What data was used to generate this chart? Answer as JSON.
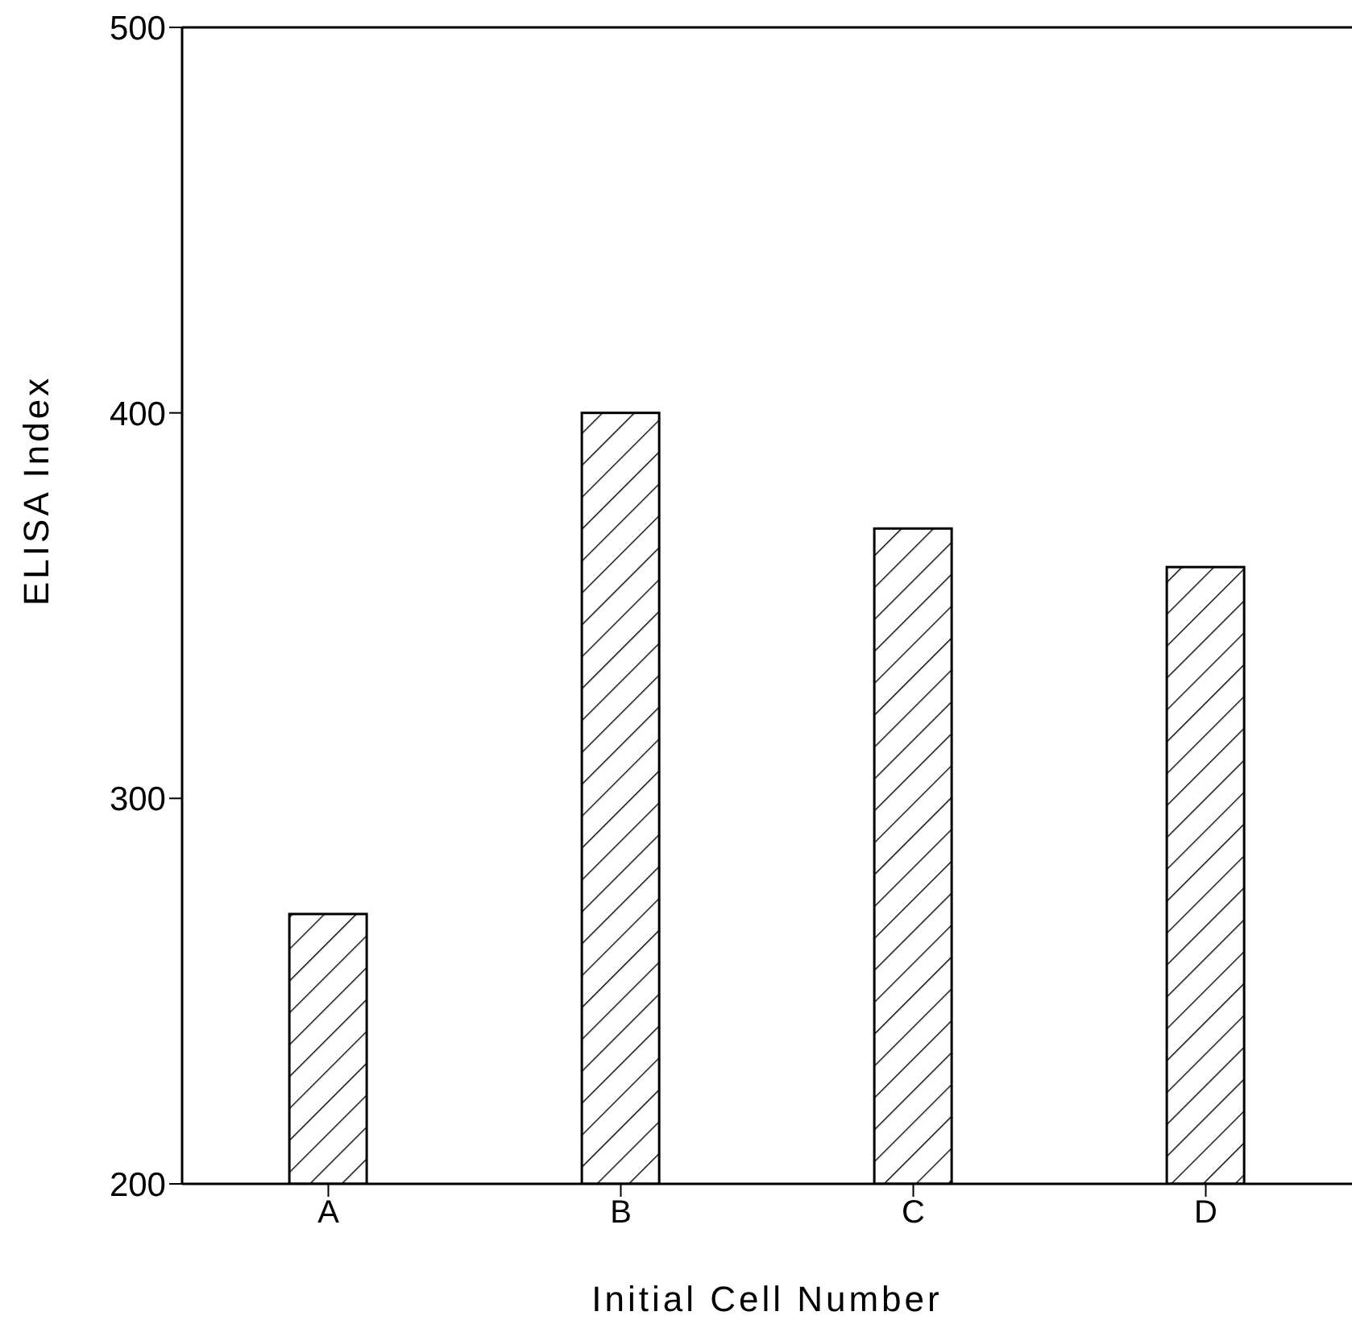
{
  "chart_data": {
    "type": "bar",
    "xlabel": "Initial Cell Number",
    "ylabel": "ELISA Index",
    "categories": [
      "A",
      "B",
      "C",
      "D"
    ],
    "values": [
      270,
      400,
      370,
      360
    ],
    "color": "#000000",
    "ylim": [
      200,
      500
    ],
    "yticks": [
      200,
      300,
      400,
      500
    ],
    "grid": false
  }
}
